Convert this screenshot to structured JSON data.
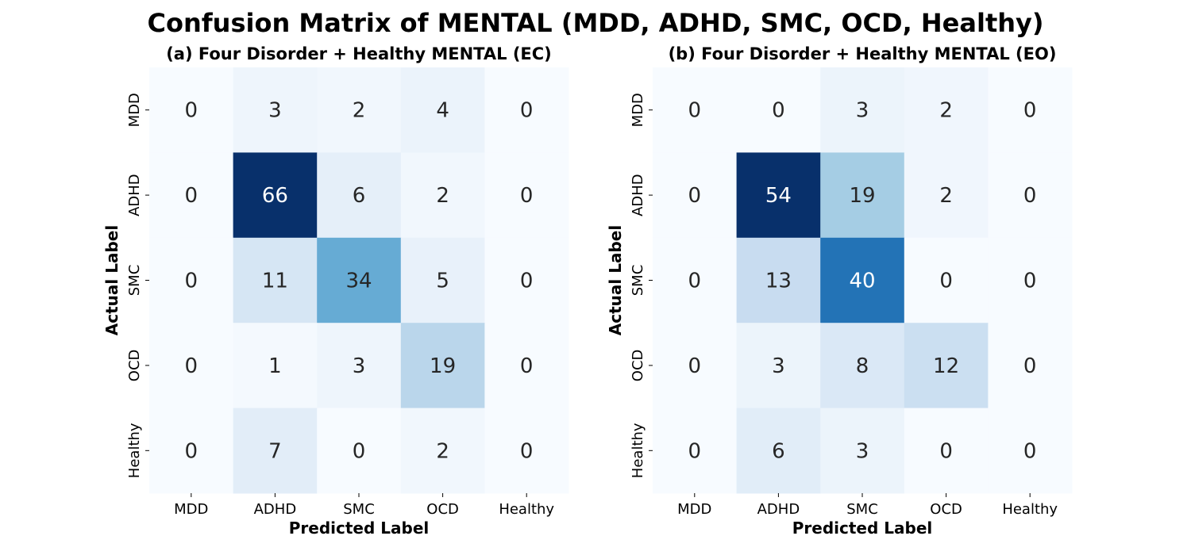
{
  "title": "Confusion Matrix of MENTAL (MDD, ADHD, SMC, OCD, Healthy)",
  "chart_data": [
    {
      "type": "heatmap",
      "title": "(a) Four Disorder + Healthy MENTAL (EC)",
      "xlabel": "Predicted Label",
      "ylabel": "Actual Label",
      "x_categories": [
        "MDD",
        "ADHD",
        "SMC",
        "OCD",
        "Healthy"
      ],
      "y_categories": [
        "MDD",
        "ADHD",
        "SMC",
        "OCD",
        "Healthy"
      ],
      "values": [
        [
          0,
          3,
          2,
          4,
          0
        ],
        [
          0,
          66,
          6,
          2,
          0
        ],
        [
          0,
          11,
          34,
          5,
          0
        ],
        [
          0,
          1,
          3,
          19,
          0
        ],
        [
          0,
          7,
          0,
          2,
          0
        ]
      ],
      "colormap": "Blues",
      "vmin": 0,
      "vmax": 66,
      "colorbar": false
    },
    {
      "type": "heatmap",
      "title": "(b) Four Disorder + Healthy MENTAL (EO)",
      "xlabel": "Predicted Label",
      "ylabel": "Actual Label",
      "x_categories": [
        "MDD",
        "ADHD",
        "SMC",
        "OCD",
        "Healthy"
      ],
      "y_categories": [
        "MDD",
        "ADHD",
        "SMC",
        "OCD",
        "Healthy"
      ],
      "values": [
        [
          0,
          0,
          3,
          2,
          0
        ],
        [
          0,
          54,
          19,
          2,
          0
        ],
        [
          0,
          13,
          40,
          0,
          0
        ],
        [
          0,
          3,
          8,
          12,
          0
        ],
        [
          0,
          6,
          3,
          0,
          0
        ]
      ],
      "colormap": "Blues",
      "vmin": 0,
      "vmax": 54,
      "colorbar": false
    }
  ]
}
